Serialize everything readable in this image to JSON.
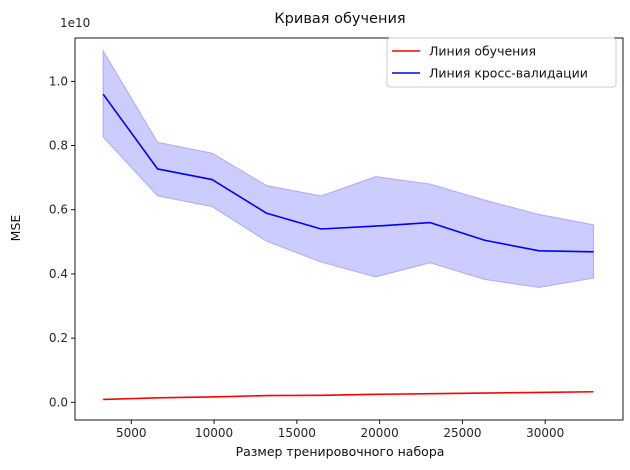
{
  "chart_data": {
    "type": "line",
    "title": "Кривая обучения",
    "xlabel": "Размер тренировочного набора",
    "ylabel": "MSE",
    "y_scale_label": "1e10",
    "xlim": [
      1600,
      34700
    ],
    "ylim": [
      -0.055,
      1.135
    ],
    "x_ticks": [
      5000,
      10000,
      15000,
      20000,
      25000,
      30000
    ],
    "y_ticks": [
      0.0,
      0.2,
      0.4,
      0.6,
      0.8,
      1.0
    ],
    "y_tick_labels": [
      "0.0",
      "0.2",
      "0.4",
      "0.6",
      "0.8",
      "1.0"
    ],
    "x": [
      3300,
      6590,
      9880,
      13180,
      16470,
      19760,
      23050,
      26340,
      29630,
      32920
    ],
    "legend_position": "top-right",
    "grid": false,
    "series": [
      {
        "name": "Линия обучения",
        "color": "#ff0000",
        "values": [
          0.009,
          0.014,
          0.017,
          0.021,
          0.022,
          0.025,
          0.027,
          0.029,
          0.031,
          0.033
        ]
      },
      {
        "name": "Линия кросс-валидации",
        "color": "#0000ff",
        "values": [
          0.96,
          0.727,
          0.694,
          0.589,
          0.54,
          0.549,
          0.56,
          0.505,
          0.472,
          0.469
        ],
        "band_upper": [
          1.095,
          0.81,
          0.776,
          0.675,
          0.643,
          0.703,
          0.68,
          0.63,
          0.585,
          0.553
        ],
        "band_lower": [
          0.827,
          0.643,
          0.61,
          0.502,
          0.437,
          0.391,
          0.435,
          0.383,
          0.358,
          0.387
        ],
        "band_color": "#ccccff"
      }
    ]
  }
}
